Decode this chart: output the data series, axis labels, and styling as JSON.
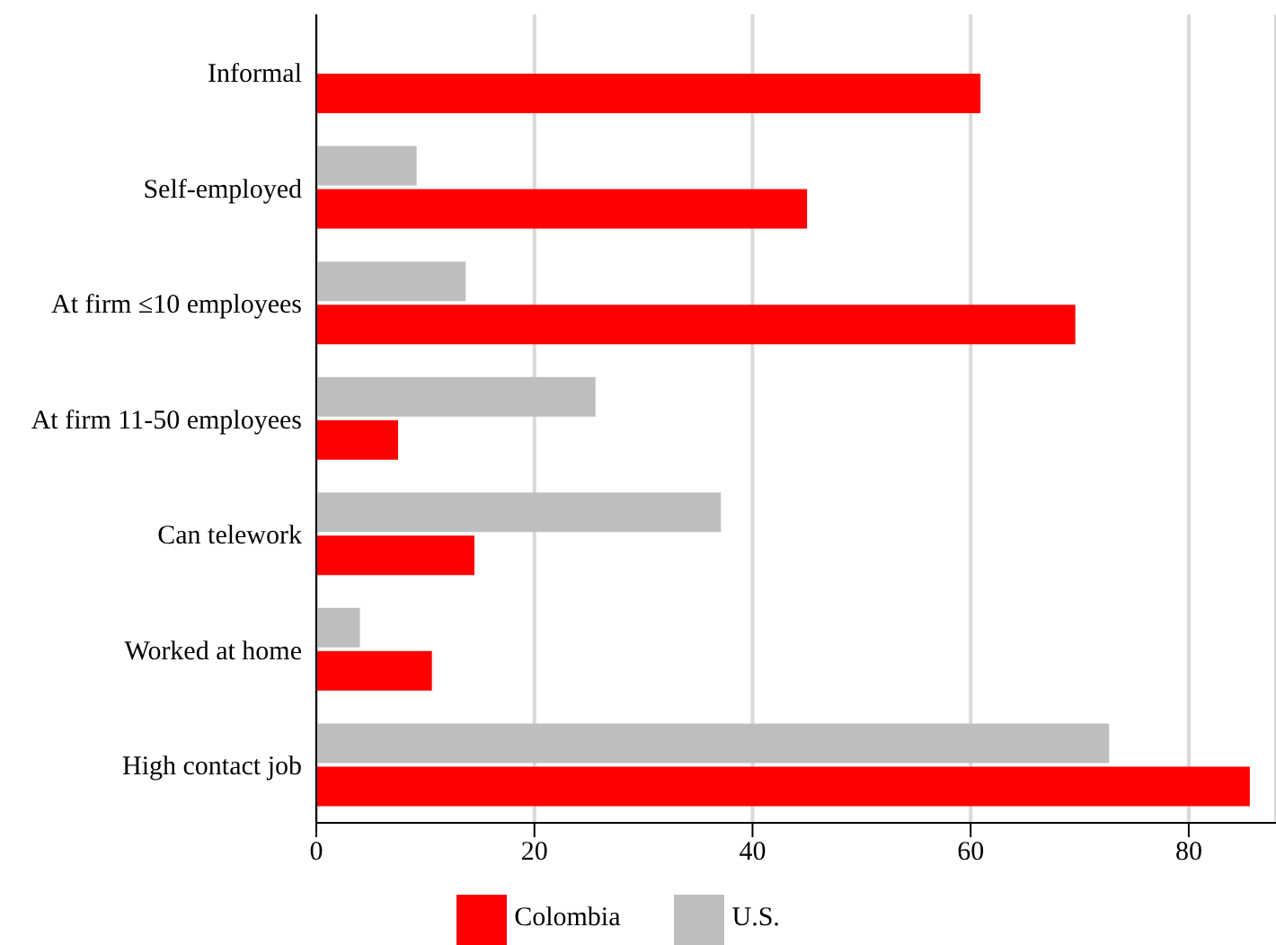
{
  "chart_data": {
    "type": "bar",
    "orientation": "horizontal",
    "categories": [
      "Informal",
      "Self-employed",
      "At firm ≤10 employees",
      "At firm 11-50 employees",
      "Can telework",
      "Worked at home",
      "High contact job"
    ],
    "series": [
      {
        "name": "U.S.",
        "color": "#bebebe",
        "values": [
          null,
          9.2,
          13.7,
          25.6,
          37.1,
          4.0,
          72.7
        ]
      },
      {
        "name": "Colombia",
        "color": "#ff0000",
        "values": [
          60.9,
          45.0,
          69.6,
          7.5,
          14.5,
          10.6,
          85.6
        ]
      }
    ],
    "xlim": [
      0,
      88
    ],
    "xticks": [
      0,
      20,
      40,
      60,
      80
    ],
    "grid": "x",
    "legend": "bottom"
  }
}
